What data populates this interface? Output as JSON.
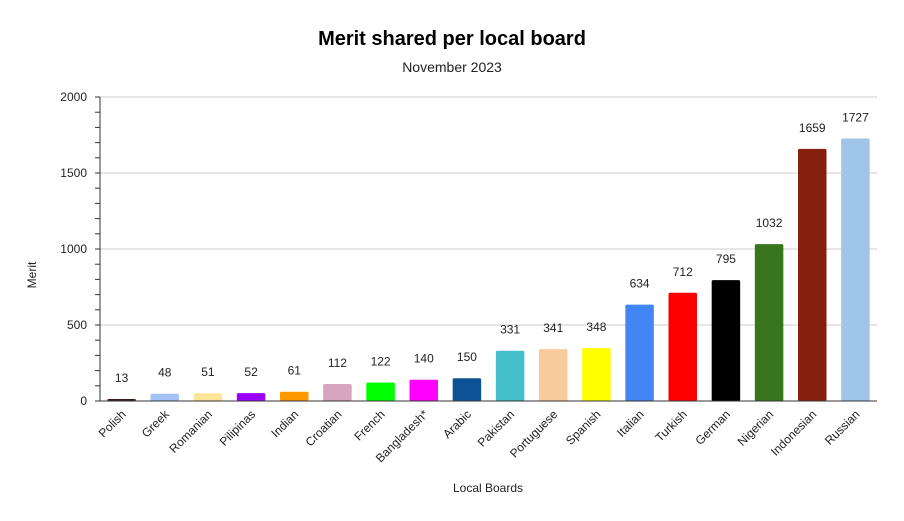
{
  "chart_data": {
    "type": "bar",
    "title": "Merit shared per local board",
    "subtitle": "November 2023",
    "xlabel": "Local Boards",
    "ylabel": "Merit",
    "ylim": [
      0,
      2000
    ],
    "yticks": [
      0,
      500,
      1000,
      1500,
      2000
    ],
    "grid": true,
    "categories": [
      "Polish",
      "Greek",
      "Romanian",
      "Pilipinas",
      "Indian",
      "Croatian",
      "French",
      "Bangladesh*",
      "Arabic",
      "Pakistan",
      "Portuguese",
      "Spanish",
      "Italian",
      "Turkish",
      "German",
      "Nigerian",
      "Indonesian",
      "Russian"
    ],
    "values": [
      13,
      48,
      51,
      52,
      61,
      112,
      122,
      140,
      150,
      331,
      341,
      348,
      634,
      712,
      795,
      1032,
      1659,
      1727
    ],
    "colors": [
      "#3d1a14",
      "#a4c2f4",
      "#ffe599",
      "#9900ff",
      "#ff9900",
      "#d5a6bd",
      "#00ff00",
      "#ff00ff",
      "#0b5394",
      "#45bfc9",
      "#f9cb9c",
      "#ffff00",
      "#4285f4",
      "#ff0000",
      "#000000",
      "#38761d",
      "#85200c",
      "#9fc5e8"
    ]
  }
}
